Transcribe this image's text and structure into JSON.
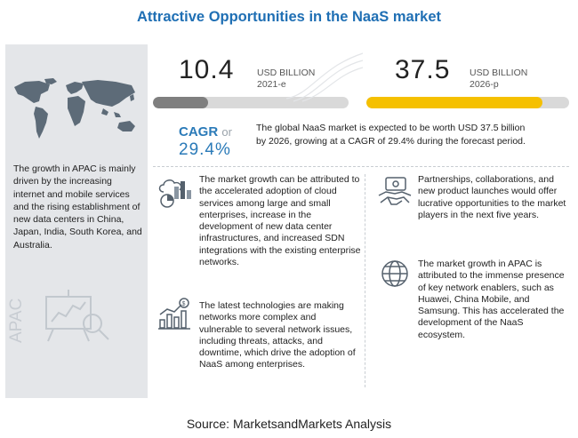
{
  "title": "Attractive Opportunities in the NaaS market",
  "metrics": {
    "start": {
      "value": "10.4",
      "unit": "USD BILLION",
      "year": "2021-e",
      "fill_fraction": 0.28,
      "color": "#7f7f7f"
    },
    "end": {
      "value": "37.5",
      "unit": "USD BILLION",
      "year": "2026-p",
      "fill_fraction": 0.87,
      "color": "#f5c000"
    }
  },
  "cagr": {
    "label": "CAGR",
    "or": "or",
    "value": "29.4%",
    "text": "The global NaaS market is expected to be worth USD 37.5 billion by 2026, growing at a CAGR of 29.4% during the forecast period."
  },
  "left": {
    "text": "The growth in APAC is mainly driven by the increasing internet and mobile services and the rising establishment of new data centers in China, Japan, India, South Korea, and Australia.",
    "region_label": "APAC"
  },
  "items": [
    {
      "icon": "cloud-analytics-icon",
      "text": "The market growth can be attributed to the accelerated adoption of cloud services among large and small enterprises, increase in the development of new data center infrastructures, and increased SDN integrations with the existing enterprise networks."
    },
    {
      "icon": "handshake-icon",
      "text": "Partnerships, collaborations, and new product launches would offer lucrative opportunities to the market players in the next five years."
    },
    {
      "icon": "growth-chart-icon",
      "text": "The latest technologies are making networks more complex and vulnerable to several network issues, including threats, attacks, and downtime, which drive the adoption of NaaS among enterprises."
    },
    {
      "icon": "globe-icon",
      "text": "The market growth in APAC is attributed to the immense presence of key network enablers, such as Huawei, China Mobile, and Samsung. This has accelerated the development of the NaaS ecosystem."
    }
  ],
  "source": "Source: MarketsandMarkets Analysis"
}
